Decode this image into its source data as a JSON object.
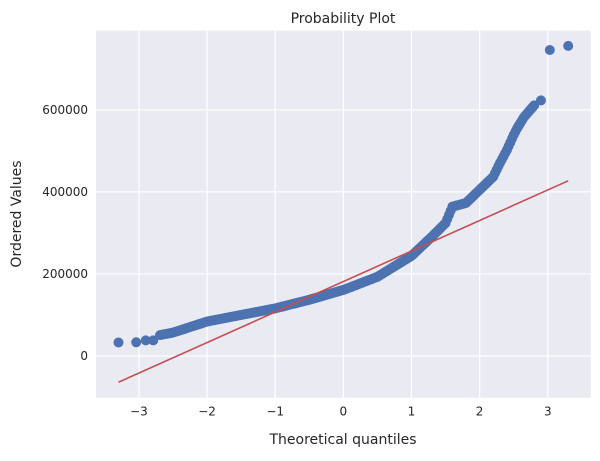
{
  "chart_data": {
    "type": "scatter",
    "title": "Probability Plot",
    "xlabel": "Theoretical quantiles",
    "ylabel": "Ordered Values",
    "xlim": [
      -3.63,
      3.63
    ],
    "ylim": [
      -101700,
      793000
    ],
    "xticks": [
      -3,
      -2,
      -1,
      0,
      1,
      2,
      3
    ],
    "xtick_labels": [
      "−3",
      "−2",
      "−1",
      "0",
      "1",
      "2",
      "3"
    ],
    "yticks": [
      0,
      200000,
      400000,
      600000
    ],
    "ytick_labels": [
      "0",
      "200000",
      "400000",
      "600000"
    ],
    "grid": true,
    "series": [
      {
        "name": "ordered values",
        "kind": "points",
        "color": "#4c72b0",
        "outliers": [
          [
            -3.3,
            33000
          ],
          [
            -3.04,
            33400
          ],
          [
            -2.9,
            38000
          ],
          [
            -2.79,
            38000
          ],
          [
            2.9,
            623000
          ],
          [
            3.03,
            746000
          ],
          [
            3.3,
            756000
          ]
        ],
        "curve": [
          [
            -2.69,
            51000
          ],
          [
            -2.5,
            57000
          ],
          [
            -2.0,
            84000
          ],
          [
            -1.5,
            100000
          ],
          [
            -1.0,
            116000
          ],
          [
            -0.5,
            137000
          ],
          [
            0.0,
            161000
          ],
          [
            0.5,
            193000
          ],
          [
            1.0,
            244000
          ],
          [
            1.3,
            291000
          ],
          [
            1.5,
            324000
          ],
          [
            1.6,
            364000
          ],
          [
            1.8,
            373000
          ],
          [
            2.0,
            405000
          ],
          [
            2.2,
            437000
          ],
          [
            2.3,
            471000
          ],
          [
            2.4,
            502000
          ],
          [
            2.5,
            539000
          ],
          [
            2.55,
            555000
          ],
          [
            2.65,
            582000
          ],
          [
            2.8,
            611000
          ]
        ]
      },
      {
        "name": "fit line",
        "kind": "line",
        "color": "#c44e52",
        "x": [
          -3.3,
          3.3
        ],
        "y": [
          -64000,
          427000
        ]
      }
    ]
  },
  "colors": {
    "background": "#eaeaf2",
    "grid": "#ffffff"
  }
}
